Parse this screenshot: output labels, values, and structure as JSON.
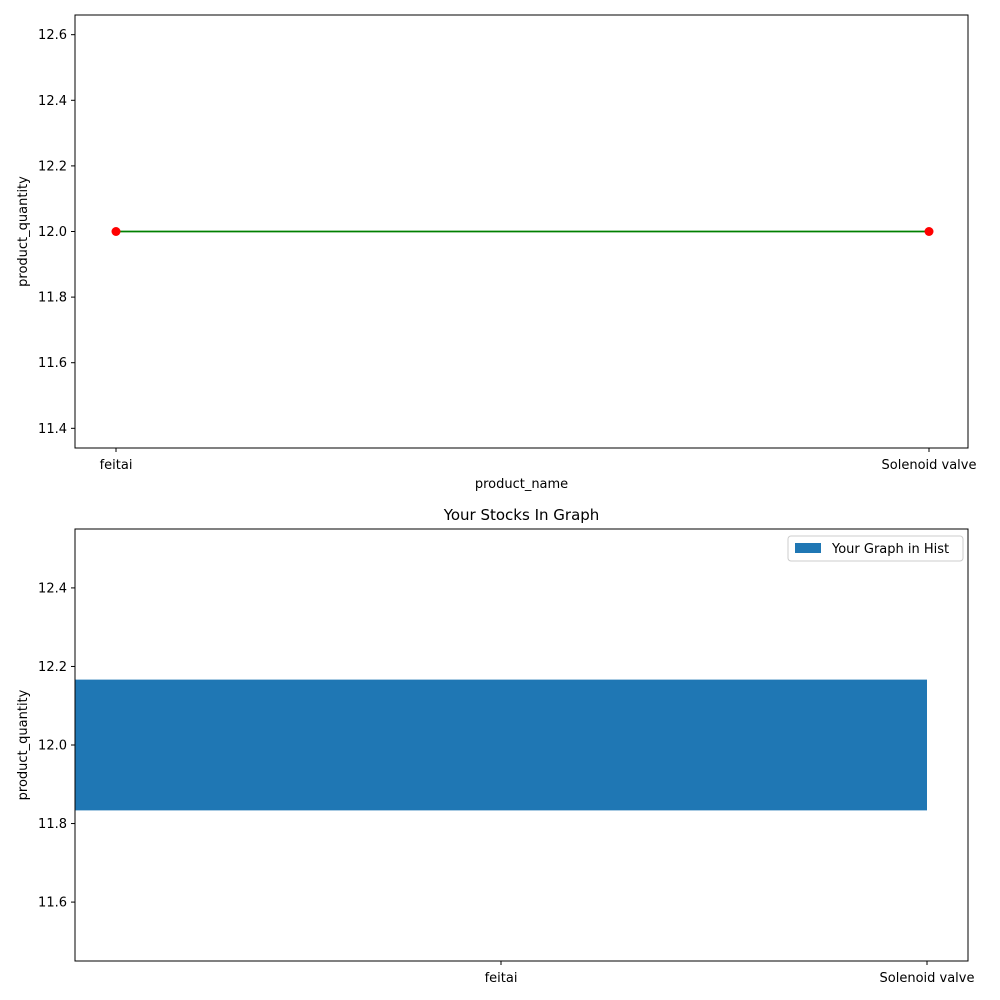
{
  "chart_data": [
    {
      "type": "line",
      "title": "",
      "xlabel": "product_name",
      "ylabel": "product_quantity",
      "categories": [
        "feitai",
        "Solenoid valve"
      ],
      "series": [
        {
          "values": [
            12.0,
            12.0
          ],
          "line_color": "#008000",
          "marker_color": "#ff0000",
          "marker": "circle"
        }
      ],
      "ylim": [
        11.34,
        12.66
      ],
      "yticks": [
        "11.4",
        "11.6",
        "11.8",
        "12.0",
        "12.2",
        "12.4",
        "12.6"
      ],
      "grid": false,
      "legend": "none"
    },
    {
      "type": "bar",
      "orientation": "horizontal",
      "title": "Your Stocks In Graph",
      "xlabel": "",
      "ylabel": "product_quantity",
      "xticks": [
        "feitai",
        "Solenoid valve"
      ],
      "bars": [
        {
          "y": 12.0,
          "height": 0.333,
          "x_start": 0,
          "x_end": 2
        }
      ],
      "ylim": [
        11.45,
        12.55
      ],
      "yticks": [
        "11.6",
        "11.8",
        "12.0",
        "12.2",
        "12.4"
      ],
      "color": "#1f77b4",
      "legend_label": "Your Graph in Hist",
      "legend": "top-right",
      "grid": false
    }
  ]
}
